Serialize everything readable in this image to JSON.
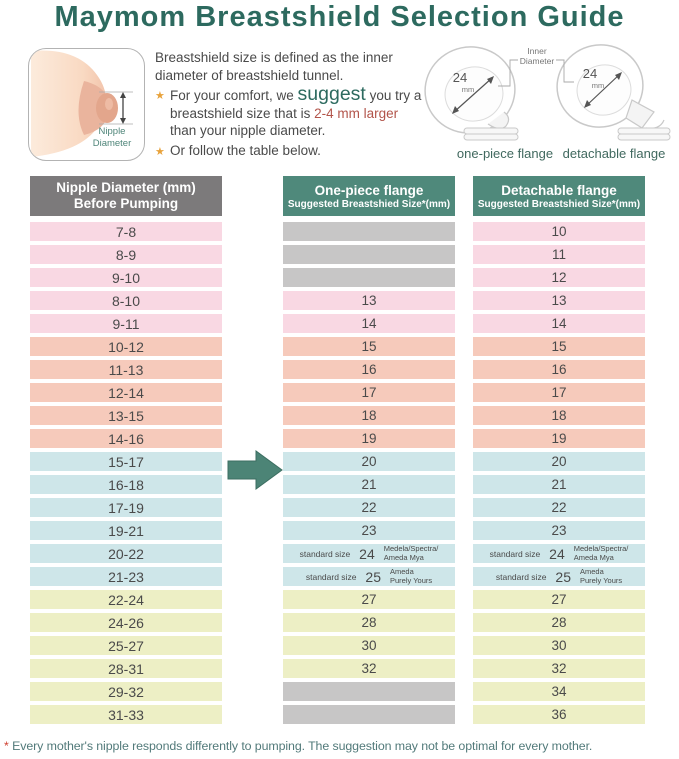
{
  "title": "Maymom Breastshield Selection Guide",
  "colors": {
    "title": "#2d6a5f",
    "text": "#4a4a4a",
    "teal-header": "#4f897b",
    "gray-header": "#7c7a7b",
    "pink": "#f9d8e3",
    "salmon": "#f6cabb",
    "blue": "#cee6e9",
    "yellow": "#edefc5",
    "gray-cell": "#c7c6c6",
    "arrow": "#4c8476",
    "star": "#e8a23b",
    "red": "#b2544a",
    "label-teal": "#4e8579",
    "caption": "#41695f",
    "note": "#527a7a",
    "ast": "#cf3f2f"
  },
  "intro": {
    "nipple_label_line1": "Nipple",
    "nipple_label_line2": "Diameter",
    "line1": "Breastshield size is defined as the inner diameter of breastshield tunnel.",
    "bullet1_pre": "For your comfort, we ",
    "bullet1_suggest": "suggest",
    "bullet1_mid": " you try a breastshield size that is ",
    "bullet1_highlight": "2-4 mm larger",
    "bullet1_post": " than your nipple diameter.",
    "bullet2": "Or follow the table below.",
    "inner_diameter_line1": "Inner",
    "inner_diameter_line2": "Diameter",
    "flange_size": "24",
    "flange_size_unit": "mm",
    "flange1_caption": "one-piece flange",
    "flange2_caption": "detachable flange"
  },
  "table": {
    "col1_line1": "Nipple Diameter (mm)",
    "col1_line2": "Before Pumping",
    "col2_line1": "One-piece flange",
    "col2_line2": "Suggested Breastshied Size*(mm)",
    "col3_line1": "Detachable flange",
    "col3_line2": "Suggested Breastshied Size*(mm)",
    "rows": [
      {
        "range": "7-8",
        "group": "pink",
        "one_piece": null,
        "detachable": "10"
      },
      {
        "range": "8-9",
        "group": "pink",
        "one_piece": null,
        "detachable": "11"
      },
      {
        "range": "9-10",
        "group": "pink",
        "one_piece": null,
        "detachable": "12"
      },
      {
        "range": "8-10",
        "group": "pink",
        "one_piece": "13",
        "detachable": "13"
      },
      {
        "range": "9-11",
        "group": "pink",
        "one_piece": "14",
        "detachable": "14"
      },
      {
        "range": "10-12",
        "group": "salmon",
        "one_piece": "15",
        "detachable": "15"
      },
      {
        "range": "11-13",
        "group": "salmon",
        "one_piece": "16",
        "detachable": "16"
      },
      {
        "range": "12-14",
        "group": "salmon",
        "one_piece": "17",
        "detachable": "17"
      },
      {
        "range": "13-15",
        "group": "salmon",
        "one_piece": "18",
        "detachable": "18"
      },
      {
        "range": "14-16",
        "group": "salmon",
        "one_piece": "19",
        "detachable": "19"
      },
      {
        "range": "15-17",
        "group": "blue",
        "one_piece": "20",
        "detachable": "20"
      },
      {
        "range": "16-18",
        "group": "blue",
        "one_piece": "21",
        "detachable": "21"
      },
      {
        "range": "17-19",
        "group": "blue",
        "one_piece": "22",
        "detachable": "22"
      },
      {
        "range": "19-21",
        "group": "blue",
        "one_piece": "23",
        "detachable": "23"
      },
      {
        "range": "20-22",
        "group": "blue",
        "one_piece": {
          "prefix": "standard size",
          "value": "24",
          "note1": "Medela/Spectra/",
          "note2": "Ameda Mya"
        },
        "detachable": {
          "prefix": "standard size",
          "value": "24",
          "note1": "Medela/Spectra/",
          "note2": "Ameda Mya"
        }
      },
      {
        "range": "21-23",
        "group": "blue",
        "one_piece": {
          "prefix": "standard size",
          "value": "25",
          "note1": "Ameda",
          "note2": "Purely Yours"
        },
        "detachable": {
          "prefix": "standard size",
          "value": "25",
          "note1": "Ameda",
          "note2": "Purely Yours"
        }
      },
      {
        "range": "22-24",
        "group": "yellow",
        "one_piece": "27",
        "detachable": "27"
      },
      {
        "range": "24-26",
        "group": "yellow",
        "one_piece": "28",
        "detachable": "28"
      },
      {
        "range": "25-27",
        "group": "yellow",
        "one_piece": "30",
        "detachable": "30"
      },
      {
        "range": "28-31",
        "group": "yellow",
        "one_piece": "32",
        "detachable": "32"
      },
      {
        "range": "29-32",
        "group": "yellow",
        "one_piece": null,
        "detachable": "34"
      },
      {
        "range": "31-33",
        "group": "yellow",
        "one_piece": null,
        "detachable": "36"
      }
    ]
  },
  "footnote": {
    "asterisk": "*",
    "text": " Every mother's nipple responds differently to pumping. The suggestion may not be optimal for every mother."
  }
}
